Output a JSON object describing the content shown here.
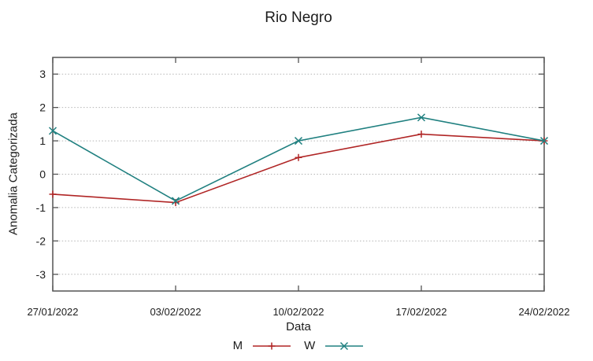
{
  "title": "Rio Negro",
  "chart_data": {
    "type": "line",
    "title": "Rio Negro",
    "xlabel": "Data",
    "ylabel": "Anomalia Categorizada",
    "categories": [
      "27/01/2022",
      "03/02/2022",
      "10/02/2022",
      "17/02/2022",
      "24/02/2022"
    ],
    "series": [
      {
        "name": "M",
        "color": "#b02525",
        "marker": "plus",
        "values": [
          -0.6,
          -0.85,
          0.5,
          1.2,
          1.0
        ]
      },
      {
        "name": "W",
        "color": "#208080",
        "marker": "cross",
        "values": [
          1.3,
          -0.8,
          1.0,
          1.7,
          1.0
        ]
      }
    ],
    "ylim": [
      -3.5,
      3.5
    ],
    "yticks": [
      -3,
      -2,
      -1,
      0,
      1,
      2,
      3
    ],
    "grid": true,
    "legend_position": "bottom-center"
  },
  "colors": {
    "axis_border": "#545454",
    "grid_line": "#b5b5b5",
    "text": "#1c1c1c",
    "background": "#ffffff"
  }
}
